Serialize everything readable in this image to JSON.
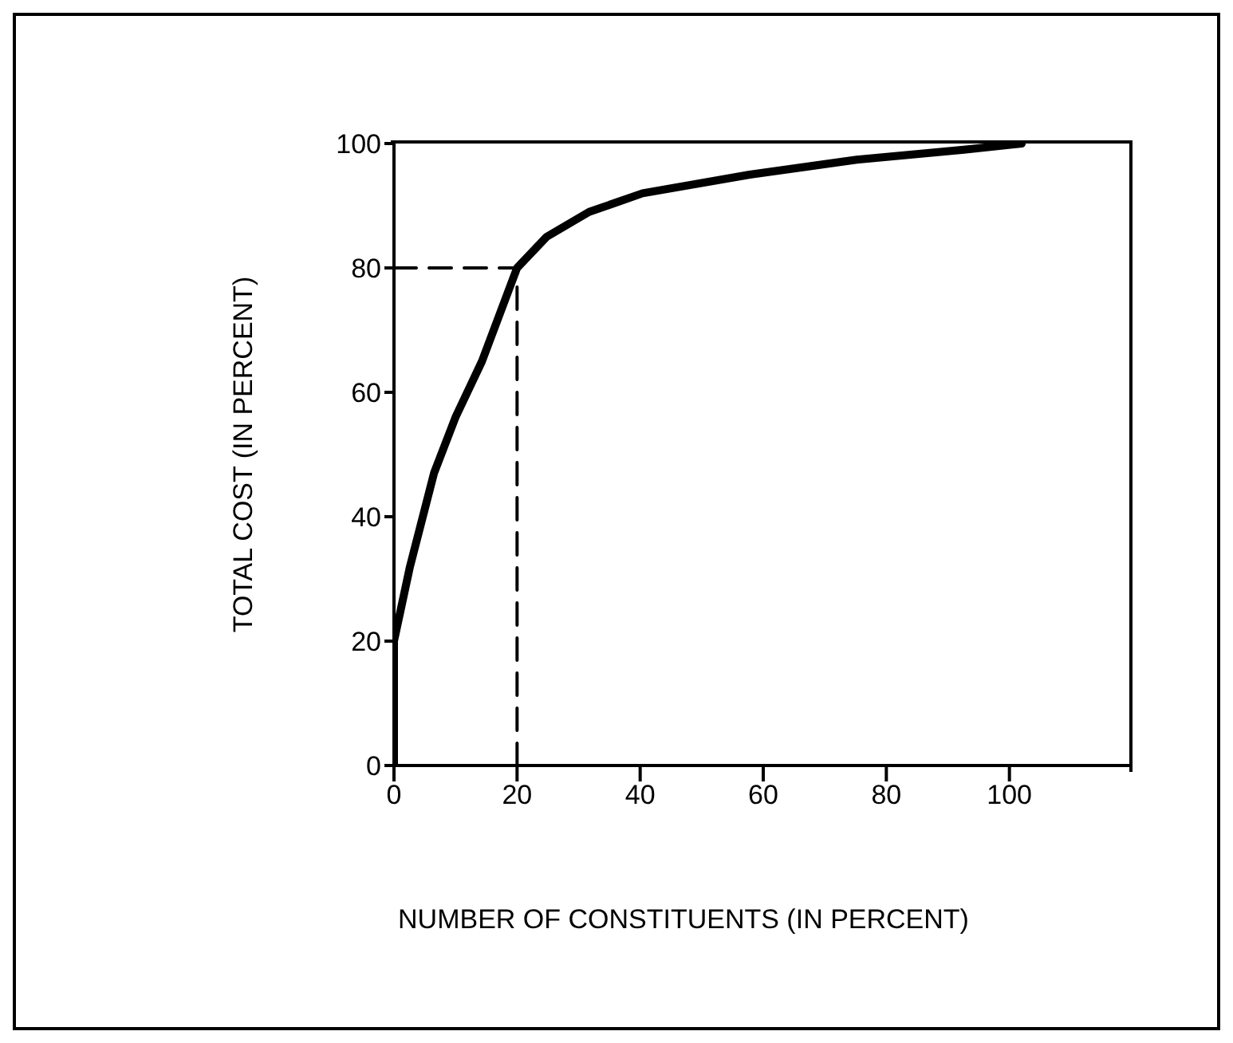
{
  "chart_data": {
    "type": "line",
    "xlabel": "NUMBER OF CONSTITUENTS (IN PERCENT)",
    "ylabel": "TOTAL COST (IN PERCENT)",
    "xlim": [
      0,
      120
    ],
    "xticks": [
      0,
      20,
      40,
      60,
      80,
      100
    ],
    "ylim": [
      0,
      100
    ],
    "yticks": [
      0,
      20,
      40,
      60,
      80,
      100
    ],
    "grid": false,
    "legend": false,
    "marker": "none",
    "series": [
      {
        "color": "#000000",
        "x": [
          0,
          0,
          2.6,
          6.5,
          10,
          14.3,
          20,
          24.8,
          31.7,
          40.4,
          57.8,
          75.2,
          92.6,
          102
        ],
        "values": [
          0,
          20,
          32,
          47,
          56,
          65,
          80,
          85,
          89,
          92,
          95,
          97.4,
          99,
          100
        ]
      },
      {
        "color": "#000000",
        "line_style": "dashed",
        "x": [
          0,
          20
        ],
        "values": [
          80,
          80
        ]
      },
      {
        "color": "#000000",
        "line_style": "dashed",
        "x": [
          20,
          20
        ],
        "values": [
          0,
          80
        ]
      }
    ]
  }
}
